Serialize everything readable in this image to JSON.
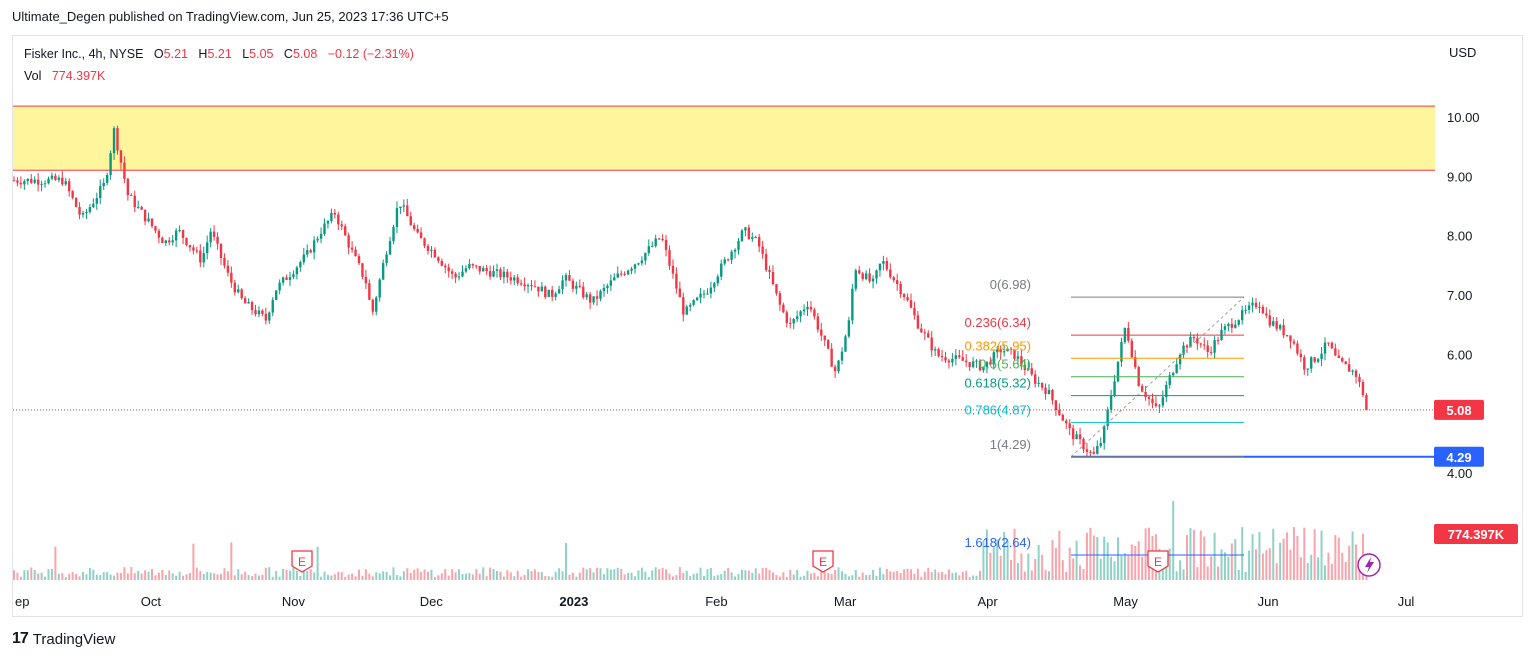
{
  "header": {
    "published": "Ultimate_Degen published on TradingView.com, Jun 25, 2023 17:36 UTC+5"
  },
  "legend": {
    "symbol": "Fisker Inc., 4h, NYSE",
    "o_label": "O",
    "o_val": "5.21",
    "h_label": "H",
    "h_val": "5.21",
    "l_label": "L",
    "l_val": "5.05",
    "c_label": "C",
    "c_val": "5.08",
    "change": "−0.12 (−2.31%)",
    "vol_label": "Vol",
    "vol_val": "774.397K"
  },
  "footer": {
    "brand": "TradingView",
    "logo": "17"
  },
  "colors": {
    "up": "#089981",
    "down": "#f23645",
    "zone": "#fff59d",
    "support": "#2962ff",
    "fib_line": "#9e9e9e"
  },
  "chart_data": {
    "type": "candlestick",
    "currency": "USD",
    "y_ticks": [
      "10.00",
      "9.00",
      "8.00",
      "7.00",
      "6.00",
      "5.00",
      "4.00"
    ],
    "x_ticks": [
      "ep",
      "Oct",
      "Nov",
      "Dec",
      "2023",
      "Feb",
      "Mar",
      "Apr",
      "May",
      "Jun",
      "Jul"
    ],
    "ylim": [
      3.3,
      10.95
    ],
    "last_price": "5.08",
    "support_level": "4.29",
    "volume_label": "774.397K",
    "supply_zone": [
      9.12,
      10.2
    ],
    "price_path": [
      [
        "2022-09-12",
        8.95
      ],
      [
        "2022-09-16",
        8.3
      ],
      [
        "2022-09-21",
        8.9
      ],
      [
        "2022-09-23",
        9.8
      ],
      [
        "2022-09-26",
        8.7
      ],
      [
        "2022-10-04",
        7.9
      ],
      [
        "2022-10-07",
        8.1
      ],
      [
        "2022-10-12",
        7.6
      ],
      [
        "2022-10-14",
        8.1
      ],
      [
        "2022-10-18",
        7.3
      ],
      [
        "2022-10-21",
        6.9
      ],
      [
        "2022-10-26",
        6.6
      ],
      [
        "2022-10-28",
        7.1
      ],
      [
        "2022-11-04",
        7.7
      ],
      [
        "2022-11-07",
        8.1
      ],
      [
        "2022-11-10",
        8.4
      ],
      [
        "2022-11-14",
        7.7
      ],
      [
        "2022-11-17",
        7.2
      ],
      [
        "2022-11-18",
        6.65
      ],
      [
        "2022-11-21",
        7.7
      ],
      [
        "2022-11-24",
        8.6
      ],
      [
        "2022-11-28",
        8.0
      ],
      [
        "2022-12-02",
        7.7
      ],
      [
        "2022-12-06",
        7.3
      ],
      [
        "2022-12-09",
        7.5
      ],
      [
        "2022-12-14",
        7.4
      ],
      [
        "2022-12-19",
        7.3
      ],
      [
        "2022-12-23",
        7.2
      ],
      [
        "2022-12-27",
        7.0
      ],
      [
        "2022-12-30",
        7.3
      ],
      [
        "2023-01-05",
        6.9
      ],
      [
        "2023-01-10",
        7.3
      ],
      [
        "2023-01-15",
        7.6
      ],
      [
        "2023-01-20",
        8.0
      ],
      [
        "2023-01-25",
        6.7
      ],
      [
        "2023-01-30",
        7.1
      ],
      [
        "2023-02-03",
        7.6
      ],
      [
        "2023-02-07",
        8.1
      ],
      [
        "2023-02-10",
        7.9
      ],
      [
        "2023-02-15",
        6.8
      ],
      [
        "2023-02-17",
        6.5
      ],
      [
        "2023-02-21",
        6.9
      ],
      [
        "2023-02-23",
        6.5
      ],
      [
        "2023-02-27",
        5.7
      ],
      [
        "2023-03-02",
        6.6
      ],
      [
        "2023-03-03",
        7.5
      ],
      [
        "2023-03-07",
        7.2
      ],
      [
        "2023-03-09",
        7.6
      ],
      [
        "2023-03-14",
        7.0
      ],
      [
        "2023-03-17",
        6.5
      ],
      [
        "2023-03-21",
        6.0
      ],
      [
        "2023-03-27",
        5.9
      ],
      [
        "2023-03-31",
        5.8
      ],
      [
        "2023-04-04",
        6.1
      ],
      [
        "2023-04-07",
        6.0
      ],
      [
        "2023-04-11",
        5.6
      ],
      [
        "2023-04-14",
        5.4
      ],
      [
        "2023-04-19",
        4.7
      ],
      [
        "2023-04-24",
        4.3
      ],
      [
        "2023-04-26",
        4.6
      ],
      [
        "2023-04-28",
        5.4
      ],
      [
        "2023-05-01",
        6.5
      ],
      [
        "2023-05-04",
        5.5
      ],
      [
        "2023-05-08",
        5.05
      ],
      [
        "2023-05-10",
        5.5
      ],
      [
        "2023-05-13",
        6.1
      ],
      [
        "2023-05-16",
        6.3
      ],
      [
        "2023-05-19",
        6.05
      ],
      [
        "2023-05-22",
        6.4
      ],
      [
        "2023-05-25",
        6.6
      ],
      [
        "2023-05-30",
        6.9
      ],
      [
        "2023-06-01",
        6.6
      ],
      [
        "2023-06-06",
        6.3
      ],
      [
        "2023-06-09",
        5.8
      ],
      [
        "2023-06-12",
        6.0
      ],
      [
        "2023-06-14",
        6.2
      ],
      [
        "2023-06-16",
        5.9
      ],
      [
        "2023-06-20",
        5.7
      ],
      [
        "2023-06-23",
        5.08
      ]
    ],
    "fibonacci": [
      {
        "level": "0(6.98)",
        "value": 6.98,
        "color": "#787b86"
      },
      {
        "level": "0.236(6.34)",
        "value": 6.34,
        "color": "#f23645"
      },
      {
        "level": "0.382(5.95)",
        "value": 5.95,
        "color": "#ff9800"
      },
      {
        "level": "0.5(5.64)",
        "value": 5.64,
        "color": "#4caf50"
      },
      {
        "level": "0.618(5.32)",
        "value": 5.32,
        "color": "#089981"
      },
      {
        "level": "0.786(4.87)",
        "value": 4.87,
        "color": "#00bcd4"
      },
      {
        "level": "1(4.29)",
        "value": 4.29,
        "color": "#787b86"
      },
      {
        "level": "1.618(2.64)",
        "value": 2.64,
        "color": "#2962ff"
      }
    ],
    "earnings_markers": [
      "E",
      "E",
      "E",
      "E"
    ]
  }
}
